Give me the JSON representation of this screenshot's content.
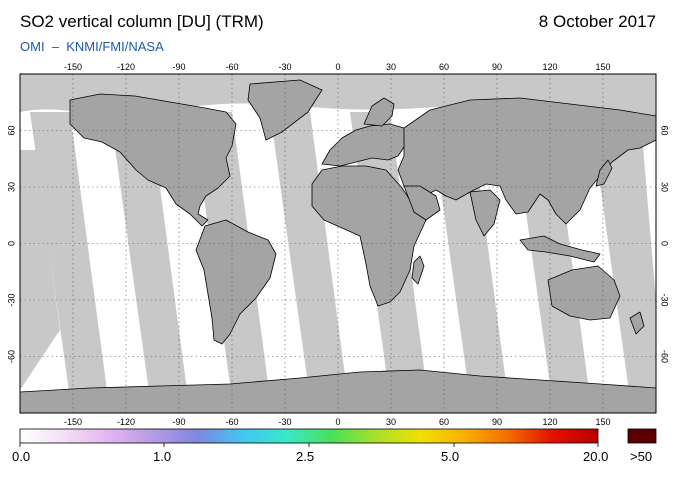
{
  "header": {
    "title": "SO2 vertical column [DU] (TRM)",
    "date": "8 October 2017",
    "credit": "OMI  –  KNMI/FMI/NASA"
  },
  "map": {
    "lon_ticks": [
      "-150",
      "-120",
      "-90",
      "-60",
      "-30",
      "0",
      "30",
      "60",
      "90",
      "120",
      "150"
    ],
    "lat_ticks": [
      "60",
      "30",
      "0",
      "-30",
      "-60"
    ],
    "colors": {
      "background": "#ffffff",
      "no_data": "#c8c8c8",
      "land_no_data": "#a4a4a4",
      "coast": "#000000",
      "grid": "#555555"
    }
  },
  "colorbar": {
    "stops": [
      "#ffffff",
      "#f3dff6",
      "#e4b4ee",
      "#b59be6",
      "#7f86e0",
      "#43c6f0",
      "#3ae8c8",
      "#49e05a",
      "#a8e02a",
      "#f0e000",
      "#f8b000",
      "#f26a00",
      "#e41000",
      "#b80000"
    ],
    "overflow_color": "#5a0000",
    "labels": [
      "0.0",
      "1.0",
      "2.5",
      "5.0",
      "20.0"
    ],
    "overflow_label": ">50"
  }
}
